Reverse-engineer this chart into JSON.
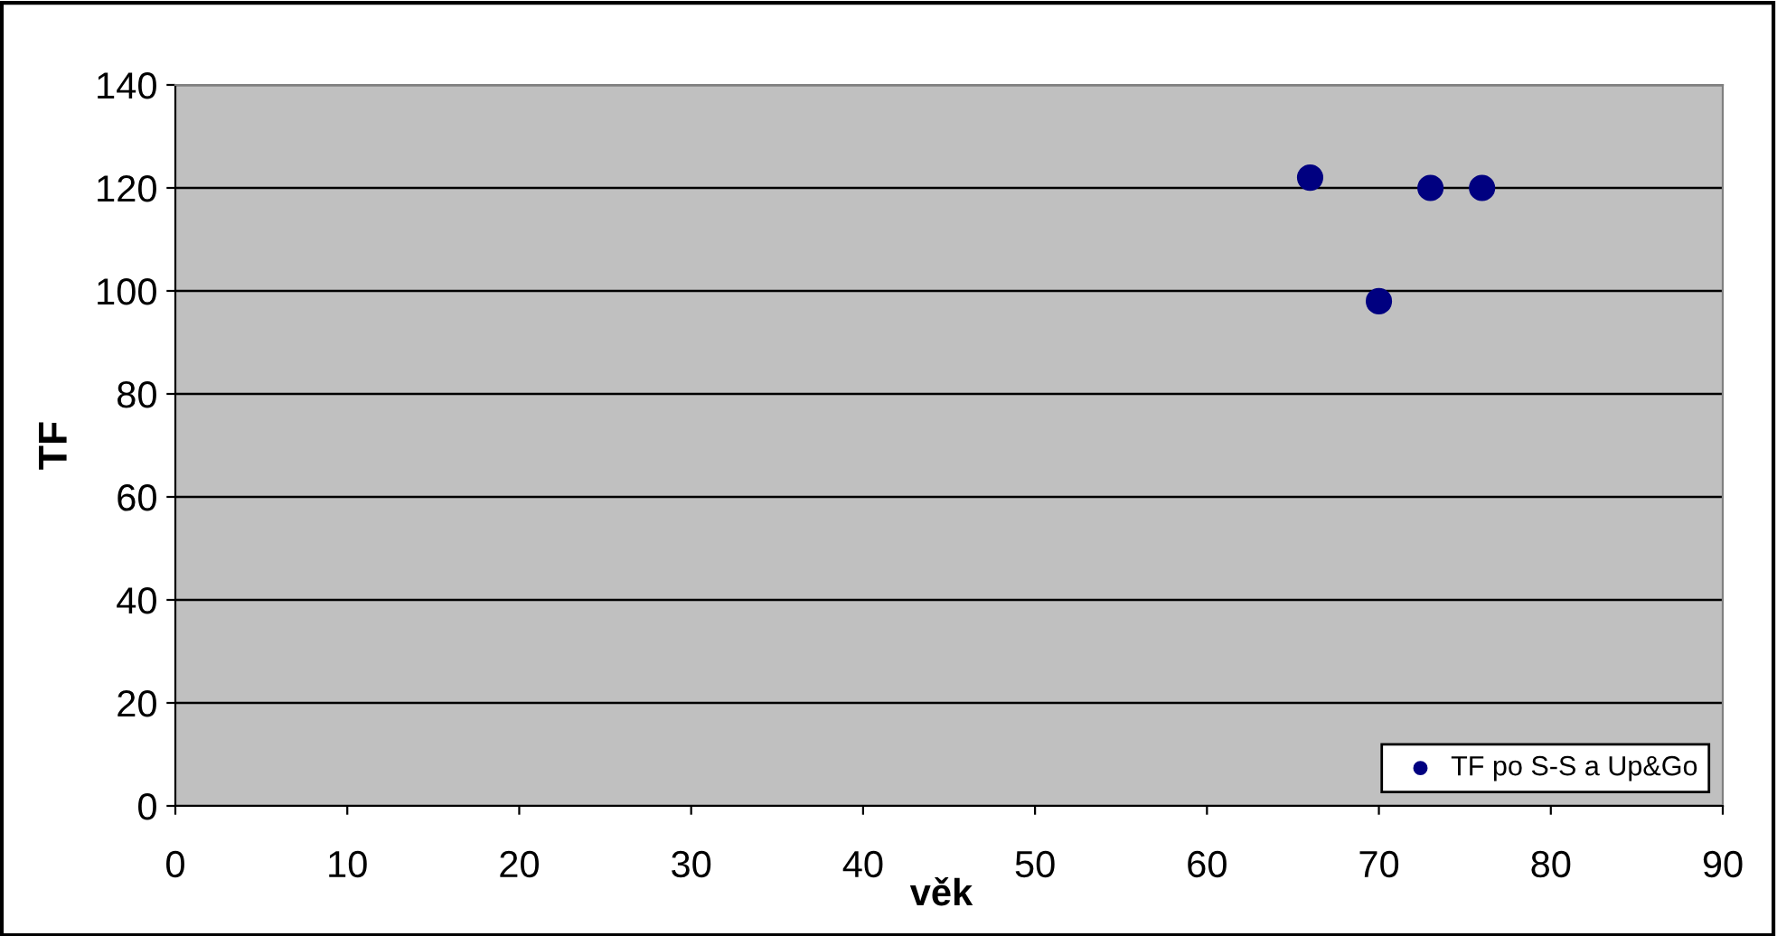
{
  "chart_data": {
    "type": "scatter",
    "xlabel": "věk",
    "ylabel": "TF",
    "x": [
      66,
      70,
      73,
      76
    ],
    "series": [
      {
        "name": "TF po S-S a Up&Go",
        "color": "#000080",
        "values": [
          122,
          98,
          120,
          120
        ]
      }
    ],
    "xlim": [
      0,
      90
    ],
    "xticks": [
      0,
      10,
      20,
      30,
      40,
      50,
      60,
      70,
      80,
      90
    ],
    "ylim": [
      0,
      140
    ],
    "yticks": [
      0,
      20,
      40,
      60,
      80,
      100,
      120,
      140
    ],
    "grid": "y",
    "legend": "bottom right",
    "marker": "circle"
  }
}
